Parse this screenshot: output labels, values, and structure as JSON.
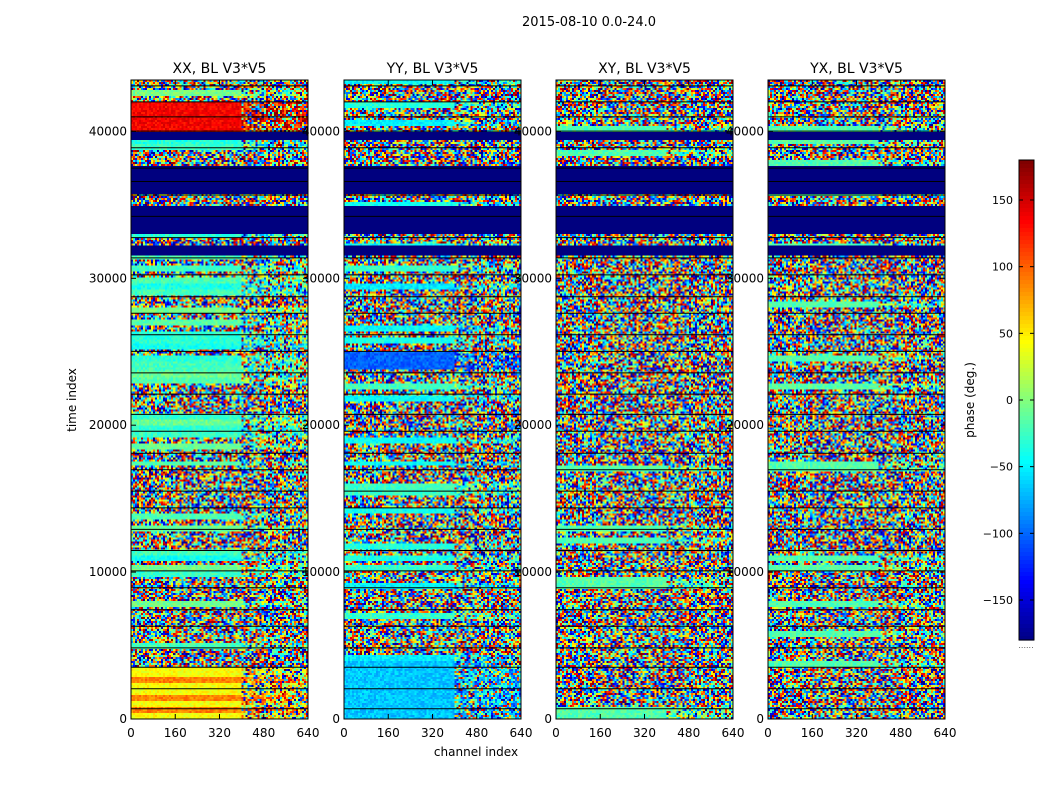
{
  "chart_data": {
    "type": "heatmap",
    "suptitle": "2015-08-10 0.0-24.0",
    "xlabel": "channel index",
    "ylabel": "time index",
    "xlim": [
      0,
      640
    ],
    "ylim": [
      0,
      43500
    ],
    "xticks": [
      0,
      160,
      320,
      480,
      640
    ],
    "yticks": [
      0,
      10000,
      20000,
      30000,
      40000
    ],
    "xtick_labels": [
      "0",
      "160",
      "320",
      "480",
      "640"
    ],
    "ytick_labels": [
      "0",
      "10000",
      "20000",
      "30000",
      "40000"
    ],
    "colormap": "jet",
    "colorbar": {
      "label": "phase (deg.)",
      "range": [
        -180,
        180
      ],
      "ticks": [
        150,
        100,
        50,
        0,
        -50,
        -100,
        -150
      ],
      "tick_labels": [
        "150",
        "100",
        "50",
        "0",
        "−50",
        "−100",
        "−150"
      ],
      "extra_label": "......"
    },
    "panels": [
      {
        "title": "XX, BL V3*V5",
        "product": "XX"
      },
      {
        "title": "YY, BL V3*V5",
        "product": "YY"
      },
      {
        "title": "XY, BL V3*V5",
        "product": "XY"
      },
      {
        "title": "YX, BL V3*V5",
        "product": "YX"
      }
    ],
    "flagged_time_ranges": [
      [
        31500,
        32200
      ],
      [
        33000,
        35000
      ],
      [
        35800,
        37600
      ],
      [
        39400,
        39900
      ]
    ],
    "colors": {
      "flagged": "#00007f",
      "gap_line": "#000000",
      "frame": "#000000"
    }
  }
}
